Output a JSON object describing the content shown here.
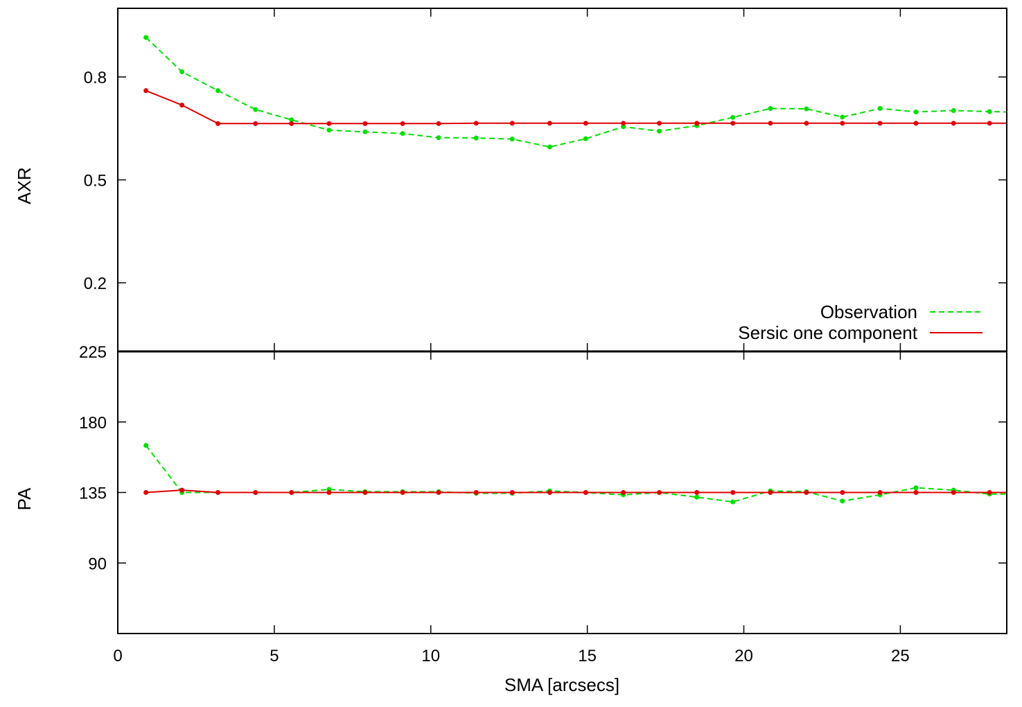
{
  "chart_data": [
    {
      "type": "line",
      "panel": "top",
      "ylabel": "AXR",
      "xlabel": "",
      "xlim": [
        0,
        28.4
      ],
      "ylim": [
        0.0,
        1.0
      ],
      "yticks": [
        0.2,
        0.5,
        0.8
      ],
      "ytick_labels": [
        "0.2",
        "0.5",
        "0.8"
      ],
      "grid": false,
      "legend": "bottom-right",
      "series": [
        {
          "name": "Observation",
          "style": "dashed",
          "color": "#00e000",
          "x": [
            0.9,
            2.05,
            3.2,
            4.4,
            5.55,
            6.75,
            7.9,
            9.1,
            10.25,
            11.45,
            12.6,
            13.8,
            14.95,
            16.15,
            17.3,
            18.5,
            19.65,
            20.85,
            22.0,
            23.15,
            24.35,
            25.5,
            26.7,
            27.85,
            28.4
          ],
          "y": [
            0.915,
            0.815,
            0.76,
            0.705,
            0.675,
            0.645,
            0.64,
            0.635,
            0.623,
            0.622,
            0.619,
            0.596,
            0.62,
            0.655,
            0.642,
            0.658,
            0.682,
            0.708,
            0.707,
            0.683,
            0.708,
            0.698,
            0.702,
            0.699,
            0.698
          ]
        },
        {
          "name": "Sersic one component",
          "style": "solid",
          "color": "#e00000",
          "x": [
            0.9,
            2.05,
            3.2,
            4.4,
            5.55,
            6.75,
            7.9,
            9.1,
            10.25,
            11.45,
            12.6,
            13.8,
            14.95,
            16.15,
            17.3,
            18.5,
            19.65,
            20.85,
            22.0,
            23.15,
            24.35,
            25.5,
            26.7,
            27.85,
            28.4
          ],
          "y": [
            0.76,
            0.718,
            0.664,
            0.664,
            0.664,
            0.664,
            0.664,
            0.664,
            0.664,
            0.665,
            0.665,
            0.665,
            0.665,
            0.665,
            0.665,
            0.665,
            0.665,
            0.665,
            0.665,
            0.665,
            0.665,
            0.665,
            0.665,
            0.665,
            0.665
          ]
        }
      ]
    },
    {
      "type": "line",
      "panel": "bottom",
      "ylabel": "PA",
      "xlabel": "SMA [arcsecs]",
      "xlim": [
        0,
        28.4
      ],
      "ylim": [
        45,
        225
      ],
      "yticks": [
        90,
        135,
        180,
        225
      ],
      "ytick_labels": [
        "90",
        "135",
        "180",
        "225"
      ],
      "xticks": [
        0,
        5,
        10,
        15,
        20,
        25
      ],
      "xtick_labels": [
        "0",
        "5",
        "10",
        "15",
        "20",
        "25"
      ],
      "grid": false,
      "series": [
        {
          "name": "Observation",
          "style": "dashed",
          "color": "#00e000",
          "x": [
            0.9,
            2.05,
            3.2,
            4.4,
            5.55,
            6.75,
            7.9,
            9.1,
            10.25,
            11.45,
            12.6,
            13.8,
            14.95,
            16.15,
            17.3,
            18.5,
            19.65,
            20.85,
            22.0,
            23.15,
            24.35,
            25.5,
            26.7,
            27.85,
            28.4
          ],
          "y": [
            165,
            135,
            135,
            135,
            135,
            137,
            135.5,
            135.5,
            135.5,
            134.5,
            134.5,
            136,
            135,
            133.5,
            135,
            132,
            129,
            136,
            135.5,
            129.5,
            133.5,
            138,
            136.5,
            134,
            134
          ]
        },
        {
          "name": "Sersic one component",
          "style": "solid",
          "color": "#e00000",
          "x": [
            0.9,
            2.05,
            3.2,
            4.4,
            5.55,
            6.75,
            7.9,
            9.1,
            10.25,
            11.45,
            12.6,
            13.8,
            14.95,
            16.15,
            17.3,
            18.5,
            19.65,
            20.85,
            22.0,
            23.15,
            24.35,
            25.5,
            26.7,
            27.85,
            28.4
          ],
          "y": [
            135,
            136.5,
            135,
            135,
            135,
            135,
            135,
            135,
            135,
            135,
            135,
            135,
            135,
            135,
            135,
            135,
            135,
            135,
            135,
            135,
            135,
            135,
            135,
            135,
            135
          ]
        }
      ]
    }
  ]
}
